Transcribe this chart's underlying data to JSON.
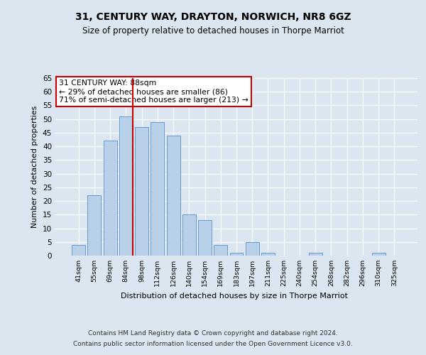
{
  "title": "31, CENTURY WAY, DRAYTON, NORWICH, NR8 6GZ",
  "subtitle": "Size of property relative to detached houses in Thorpe Marriot",
  "xlabel": "Distribution of detached houses by size in Thorpe Marriot",
  "ylabel": "Number of detached properties",
  "footer_line1": "Contains HM Land Registry data © Crown copyright and database right 2024.",
  "footer_line2": "Contains public sector information licensed under the Open Government Licence v3.0.",
  "bar_labels": [
    "41sqm",
    "55sqm",
    "69sqm",
    "84sqm",
    "98sqm",
    "112sqm",
    "126sqm",
    "140sqm",
    "154sqm",
    "169sqm",
    "183sqm",
    "197sqm",
    "211sqm",
    "225sqm",
    "240sqm",
    "254sqm",
    "268sqm",
    "282sqm",
    "296sqm",
    "310sqm",
    "325sqm"
  ],
  "bar_values": [
    4,
    22,
    42,
    51,
    47,
    49,
    44,
    15,
    13,
    4,
    1,
    5,
    1,
    0,
    0,
    1,
    0,
    0,
    0,
    1,
    0
  ],
  "bar_color": "#b8d0e8",
  "bar_edge_color": "#6699cc",
  "highlight_color": "#cc0000",
  "annotation_text": "31 CENTURY WAY: 88sqm\n← 29% of detached houses are smaller (86)\n71% of semi-detached houses are larger (213) →",
  "annotation_box_color": "#ffffff",
  "annotation_box_edge_color": "#cc0000",
  "vline_x_index": 3,
  "ylim": [
    0,
    65
  ],
  "yticks": [
    0,
    5,
    10,
    15,
    20,
    25,
    30,
    35,
    40,
    45,
    50,
    55,
    60,
    65
  ],
  "bg_color": "#dce6f0",
  "plot_bg_color": "#dce6f0",
  "grid_color": "#ffffff",
  "title_fontsize": 10,
  "subtitle_fontsize": 8.5
}
